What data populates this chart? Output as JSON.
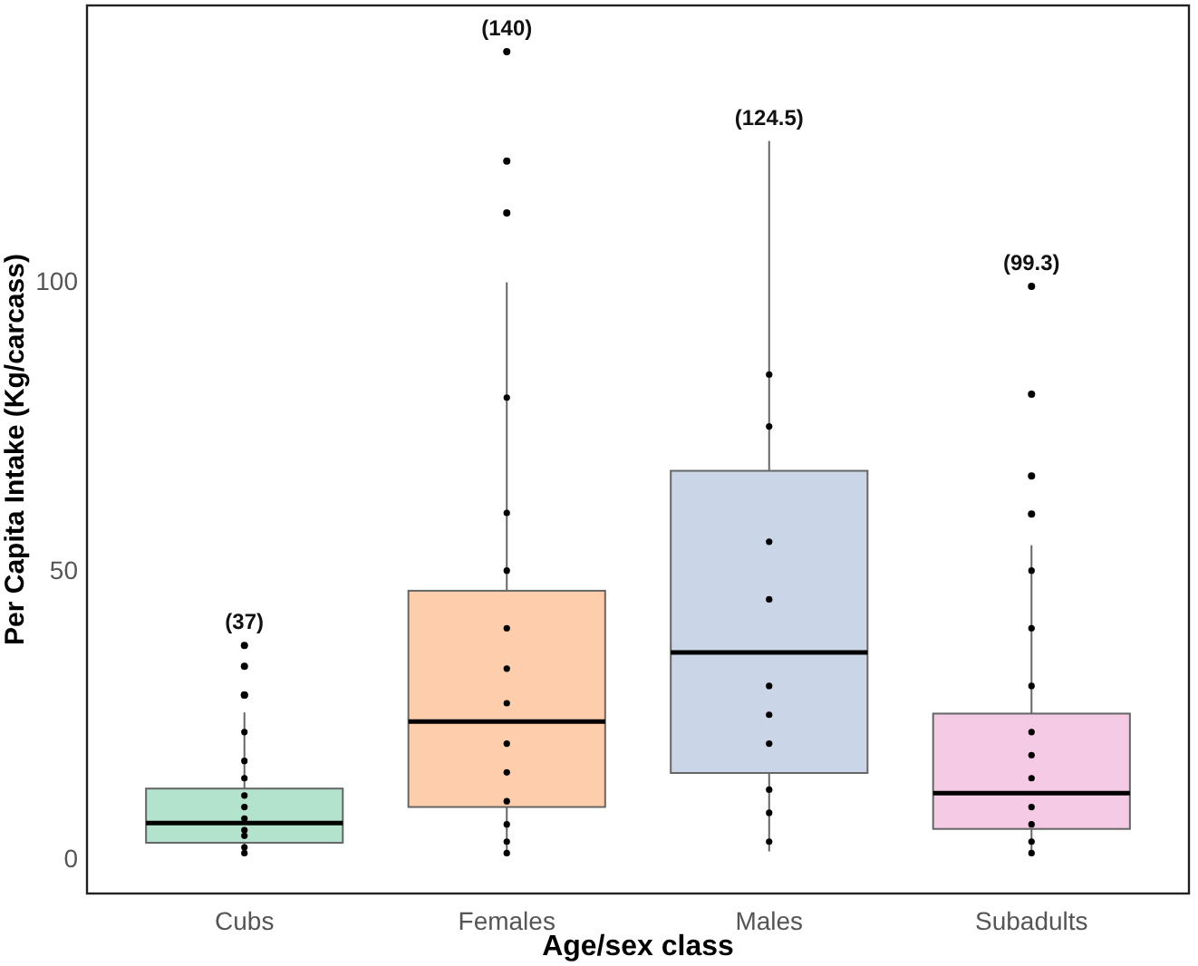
{
  "chart_data": {
    "type": "box",
    "xlabel": "Age/sex class",
    "ylabel": "Per Capita Intake (Kg/carcass)",
    "categories": [
      "Cubs",
      "Females",
      "Males",
      "Subadults"
    ],
    "colors": [
      "#b3e2cd",
      "#fdcdac",
      "#cbd5e8",
      "#f4cae4"
    ],
    "boxes": [
      {
        "low": 0.5,
        "q1": 2.8,
        "median": 6.2,
        "q3": 12.2,
        "high": 25.4,
        "outliers": [
          28.4,
          28.4,
          33.4,
          37
        ]
      },
      {
        "low": 0.5,
        "q1": 9,
        "median": 23.8,
        "q3": 46.5,
        "high": 100,
        "outliers": [
          112,
          121,
          140
        ]
      },
      {
        "low": 1.3,
        "q1": 14.9,
        "median": 35.8,
        "q3": 67.3,
        "high": 124.5
      },
      {
        "low": 0.5,
        "q1": 5.2,
        "median": 11.4,
        "q3": 25.2,
        "high": 54.4,
        "outliers": [
          59.8,
          66.4,
          80.6,
          99.3
        ]
      }
    ],
    "series": [
      {
        "type": "scatter",
        "color": "#000000",
        "x": [
          "Cubs",
          "Cubs",
          "Cubs",
          "Cubs",
          "Cubs",
          "Cubs",
          "Cubs",
          "Cubs",
          "Cubs",
          "Cubs",
          "Females",
          "Females",
          "Females",
          "Females",
          "Females",
          "Females",
          "Females",
          "Females",
          "Females",
          "Females",
          "Females",
          "Females",
          "Males",
          "Males",
          "Males",
          "Males",
          "Males",
          "Males",
          "Males",
          "Males",
          "Males",
          "Males",
          "Subadults",
          "Subadults",
          "Subadults",
          "Subadults",
          "Subadults",
          "Subadults",
          "Subadults",
          "Subadults",
          "Subadults",
          "Subadults"
        ],
        "values": [
          1,
          2,
          4,
          5,
          7,
          9,
          11,
          14,
          17,
          22,
          1,
          3,
          6,
          10,
          15,
          20,
          27,
          33,
          40,
          50,
          60,
          80,
          3,
          8,
          12,
          20,
          25,
          30,
          45,
          55,
          75,
          84,
          1,
          3,
          6,
          9,
          14,
          18,
          22,
          30,
          40,
          50
        ]
      }
    ],
    "annotations": [
      "(37)",
      "(140)",
      "(124.5)",
      "(99.3)"
    ],
    "ylim": [
      -6,
      148
    ],
    "yticks": [
      0,
      50,
      100
    ],
    "grid": false
  }
}
